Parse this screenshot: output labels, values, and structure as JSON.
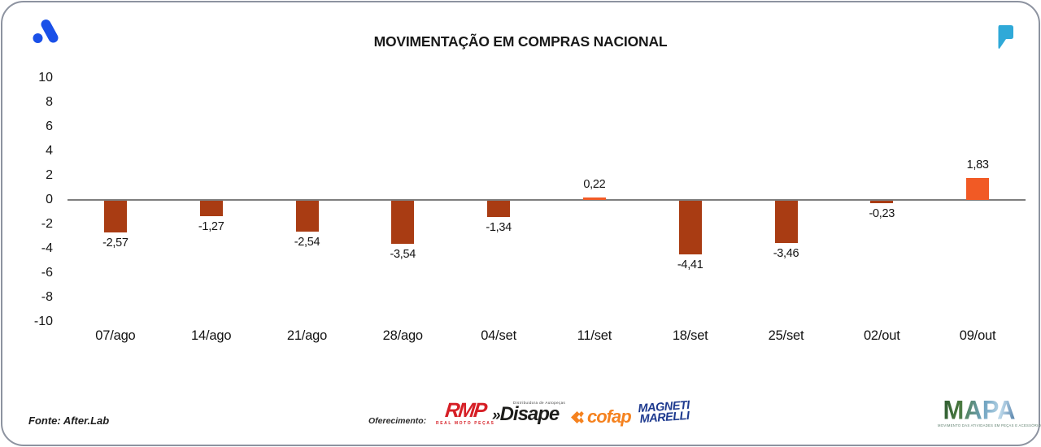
{
  "header": {
    "title": "MOVIMENTAÇÃO EM COMPRAS NACIONAL",
    "brand_color": "#1a50e8",
    "quote_color": "#2fa9d8"
  },
  "chart_data": {
    "type": "bar",
    "title": "MOVIMENTAÇÃO EM COMPRAS NACIONAL",
    "categories": [
      "07/ago",
      "14/ago",
      "21/ago",
      "28/ago",
      "04/set",
      "11/set",
      "18/set",
      "25/set",
      "02/out",
      "09/out"
    ],
    "values": [
      -2.57,
      -1.27,
      -2.54,
      -3.54,
      -1.34,
      0.22,
      -4.41,
      -3.46,
      -0.23,
      1.83
    ],
    "value_labels": [
      "-2,57",
      "-1,27",
      "-2,54",
      "-3,54",
      "-1,34",
      "0,22",
      "-4,41",
      "-3,46",
      "-0,23",
      "1,83"
    ],
    "yticks": [
      10,
      8,
      6,
      4,
      2,
      0,
      -2,
      -4,
      -6,
      -8,
      -10
    ],
    "ylim": [
      -10,
      10
    ],
    "grid": false,
    "legend": null,
    "xlabel": "",
    "ylabel": "",
    "negative_color": "#a93c13",
    "positive_color": "#f15a25",
    "axis_line_color": "#7e7e7e"
  },
  "footer": {
    "source": "Fonte: After.Lab",
    "sponsor_label": "Oferecimento:",
    "sponsors": {
      "rmp": {
        "name": "RMP",
        "subtitle": "REAL MOTO PEÇAS",
        "color": "#d61f26"
      },
      "disape": {
        "prefix": "»",
        "name": "Disape",
        "subtitle": "Distribuidora de Autopeças",
        "color": "#1d1d1b"
      },
      "cofap": {
        "name": "cofap",
        "color": "#f5821f"
      },
      "magneti": {
        "line1": "MAGNETI",
        "line2": "MARELLI",
        "color": "#1e3a8f"
      }
    },
    "mapa": {
      "name": "MAPA",
      "tagline": "MOVIMENTO DAS ATIVIDADES EM PEÇAS E ACESSÓRIOS"
    }
  }
}
